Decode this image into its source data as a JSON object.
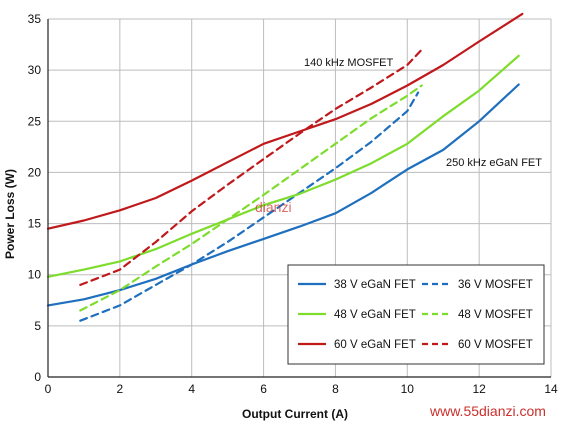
{
  "chart_data": {
    "type": "line",
    "xlabel": "Output Current (A)",
    "ylabel": "Power Loss (W)",
    "xlim": [
      0,
      14
    ],
    "ylim": [
      0,
      35
    ],
    "xticks": [
      0,
      2,
      4,
      6,
      8,
      10,
      12,
      14
    ],
    "yticks": [
      0,
      5,
      10,
      15,
      20,
      25,
      30,
      35
    ],
    "grid": true,
    "legend_position": "bottom-right",
    "annotations": [
      "140 kHz MOSFET",
      "250 kHz eGaN FET"
    ],
    "series": [
      {
        "name": "38 V eGaN FET",
        "color": "#1f6fbf",
        "style": "solid",
        "x": [
          0,
          1,
          2,
          3,
          4,
          5,
          6,
          7,
          8,
          9,
          10,
          11,
          12,
          13.1
        ],
        "y": [
          7.0,
          7.6,
          8.5,
          9.6,
          11.0,
          12.3,
          13.5,
          14.7,
          16.0,
          18.0,
          20.3,
          22.2,
          25.0,
          28.6
        ]
      },
      {
        "name": "36 V MOSFET",
        "color": "#1f6fbf",
        "style": "dashed",
        "x": [
          0.9,
          2,
          3,
          4,
          5,
          6,
          7,
          8,
          9,
          10,
          10.3
        ],
        "y": [
          5.5,
          7.0,
          9.0,
          11.0,
          13.2,
          15.6,
          18.0,
          20.4,
          23.0,
          26.0,
          27.8
        ]
      },
      {
        "name": "48 V eGaN FET",
        "color": "#7ddc2c",
        "style": "solid",
        "x": [
          0,
          1,
          2,
          3,
          4,
          5,
          6,
          7,
          8,
          9,
          10,
          11,
          12,
          13.1
        ],
        "y": [
          9.8,
          10.5,
          11.3,
          12.5,
          14.0,
          15.4,
          16.8,
          17.9,
          19.3,
          20.9,
          22.8,
          25.5,
          28.0,
          31.4
        ]
      },
      {
        "name": "48 V MOSFET",
        "color": "#7ddc2c",
        "style": "dashed",
        "x": [
          0.9,
          2,
          3,
          4,
          5,
          6,
          7,
          8,
          9,
          10,
          10.4
        ],
        "y": [
          6.5,
          8.5,
          10.8,
          13.0,
          15.4,
          17.8,
          20.3,
          22.8,
          25.3,
          27.5,
          28.5
        ]
      },
      {
        "name": "60 V eGaN FET",
        "color": "#c0191b",
        "style": "solid",
        "x": [
          0,
          1,
          2,
          3,
          4,
          5,
          6,
          7,
          8,
          9,
          10,
          11,
          12,
          13.2
        ],
        "y": [
          14.5,
          15.3,
          16.3,
          17.5,
          19.2,
          21.0,
          22.8,
          24.0,
          25.2,
          26.7,
          28.5,
          30.5,
          32.8,
          35.5
        ]
      },
      {
        "name": "60 V MOSFET",
        "color": "#c0191b",
        "style": "dashed",
        "x": [
          0.9,
          2,
          3,
          4,
          5,
          6,
          7,
          8,
          9,
          10,
          10.4
        ],
        "y": [
          9.0,
          10.5,
          13.2,
          16.2,
          18.8,
          21.3,
          23.8,
          26.2,
          28.3,
          30.5,
          32.0
        ]
      }
    ]
  },
  "watermarks": [
    "www.55dianzi.com",
    "dianzi"
  ]
}
